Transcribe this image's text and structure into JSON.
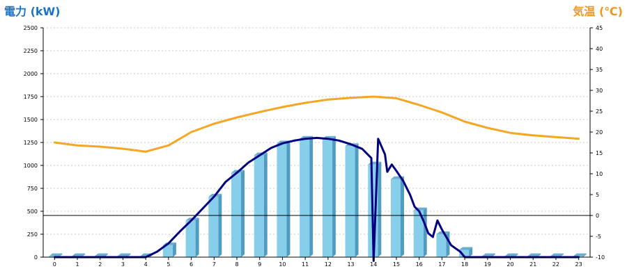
{
  "chart_data": {
    "type": "bar",
    "title": "",
    "left_axis": {
      "label": "電力 (kW)",
      "color": "#1a73c9",
      "ylim": [
        0,
        2500
      ],
      "ticks": [
        0,
        250,
        500,
        750,
        1000,
        1250,
        1500,
        1750,
        2000,
        2250,
        2500
      ]
    },
    "right_axis": {
      "label": "気温 (℃)",
      "color": "#f0961e",
      "ylim": [
        -10,
        45
      ],
      "ticks": [
        -10,
        -5,
        0,
        5,
        10,
        15,
        20,
        25,
        30,
        35,
        40,
        45
      ]
    },
    "categories": [
      "0",
      "1",
      "2",
      "3",
      "4",
      "5",
      "6",
      "7",
      "8",
      "9",
      "10",
      "11",
      "12",
      "13",
      "14",
      "15",
      "16",
      "17",
      "18",
      "19",
      "20",
      "21",
      "22",
      "23"
    ],
    "grid": true,
    "series": [
      {
        "kind": "bar",
        "axis": "left",
        "color": "#87ceeb",
        "values": [
          10,
          10,
          10,
          10,
          10,
          130,
          400,
          660,
          920,
          1110,
          1240,
          1290,
          1290,
          1210,
          1010,
          850,
          510,
          250,
          80,
          10,
          10,
          10,
          10,
          10
        ]
      },
      {
        "kind": "line",
        "axis": "left",
        "color": "#000080",
        "points": [
          [
            0,
            0
          ],
          [
            1,
            0
          ],
          [
            2,
            0
          ],
          [
            3,
            0
          ],
          [
            4,
            0
          ],
          [
            4.5,
            60
          ],
          [
            5,
            150
          ],
          [
            5.5,
            280
          ],
          [
            6,
            400
          ],
          [
            6.5,
            530
          ],
          [
            7,
            660
          ],
          [
            7.5,
            820
          ],
          [
            8,
            920
          ],
          [
            8.5,
            1030
          ],
          [
            9,
            1110
          ],
          [
            9.5,
            1190
          ],
          [
            10,
            1240
          ],
          [
            10.5,
            1270
          ],
          [
            11,
            1290
          ],
          [
            11.5,
            1300
          ],
          [
            12,
            1290
          ],
          [
            12.5,
            1270
          ],
          [
            13,
            1230
          ],
          [
            13.5,
            1180
          ],
          [
            13.9,
            1080
          ],
          [
            14,
            -40
          ],
          [
            14.2,
            1290
          ],
          [
            14.5,
            1120
          ],
          [
            14.6,
            930
          ],
          [
            14.8,
            1010
          ],
          [
            15,
            940
          ],
          [
            15.3,
            830
          ],
          [
            15.6,
            680
          ],
          [
            15.8,
            550
          ],
          [
            16,
            500
          ],
          [
            16.2,
            390
          ],
          [
            16.4,
            260
          ],
          [
            16.6,
            220
          ],
          [
            16.8,
            400
          ],
          [
            17,
            300
          ],
          [
            17.4,
            130
          ],
          [
            17.8,
            60
          ],
          [
            18,
            0
          ],
          [
            19,
            0
          ],
          [
            20,
            0
          ],
          [
            21,
            0
          ],
          [
            22,
            0
          ],
          [
            23,
            0
          ]
        ]
      },
      {
        "kind": "line",
        "axis": "right",
        "color": "#f5a623",
        "points": [
          [
            0,
            17.5
          ],
          [
            1,
            16.8
          ],
          [
            2,
            16.5
          ],
          [
            3,
            16.0
          ],
          [
            4,
            15.3
          ],
          [
            5,
            16.8
          ],
          [
            6,
            20.0
          ],
          [
            7,
            22.0
          ],
          [
            8,
            23.5
          ],
          [
            9,
            24.8
          ],
          [
            10,
            26.0
          ],
          [
            11,
            27.0
          ],
          [
            12,
            27.8
          ],
          [
            13,
            28.2
          ],
          [
            14,
            28.5
          ],
          [
            15,
            28.1
          ],
          [
            16,
            26.5
          ],
          [
            17,
            24.7
          ],
          [
            18,
            22.5
          ],
          [
            19,
            21.0
          ],
          [
            20,
            19.8
          ],
          [
            21,
            19.2
          ],
          [
            22,
            18.8
          ],
          [
            23,
            18.4
          ]
        ]
      }
    ]
  }
}
